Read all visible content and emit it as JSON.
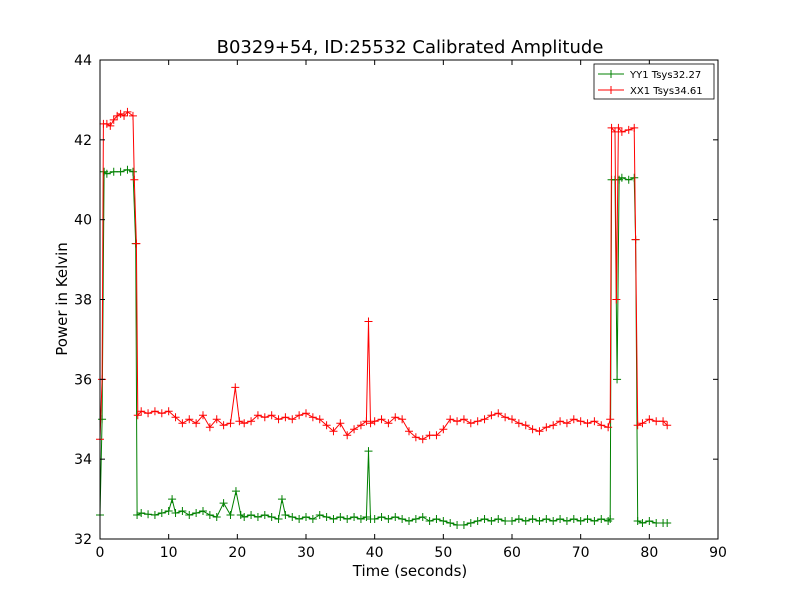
{
  "chart_data": {
    "type": "line",
    "title": "B0329+54, ID:25532 Calibrated Amplitude",
    "xlabel": "Time (seconds)",
    "ylabel": "Power in Kelvin",
    "xlim": [
      0,
      90
    ],
    "ylim": [
      32,
      44
    ],
    "xticks": [
      "0",
      "10",
      "20",
      "30",
      "40",
      "50",
      "60",
      "70",
      "80",
      "90"
    ],
    "yticks": [
      "32",
      "34",
      "36",
      "38",
      "40",
      "42",
      "44"
    ],
    "grid": false,
    "legend_position": "top-right",
    "series": [
      {
        "name": "YY1 Tsys32.27",
        "color": "#008000",
        "marker": "plus",
        "points": [
          [
            0,
            32.6
          ],
          [
            0.3,
            35
          ],
          [
            0.6,
            41.2
          ],
          [
            1,
            41.15
          ],
          [
            2,
            41.2
          ],
          [
            3,
            41.2
          ],
          [
            4,
            41.25
          ],
          [
            4.8,
            41.2
          ],
          [
            5.2,
            39.4
          ],
          [
            5.4,
            32.6
          ],
          [
            6,
            32.65
          ],
          [
            7,
            32.62
          ],
          [
            8,
            32.6
          ],
          [
            9,
            32.65
          ],
          [
            10,
            32.7
          ],
          [
            10.5,
            33.0
          ],
          [
            11,
            32.65
          ],
          [
            12,
            32.7
          ],
          [
            13,
            32.6
          ],
          [
            14,
            32.65
          ],
          [
            15,
            32.7
          ],
          [
            16,
            32.6
          ],
          [
            17,
            32.55
          ],
          [
            18,
            32.9
          ],
          [
            19,
            32.6
          ],
          [
            19.8,
            33.2
          ],
          [
            20.5,
            32.6
          ],
          [
            21,
            32.55
          ],
          [
            22,
            32.6
          ],
          [
            23,
            32.55
          ],
          [
            24,
            32.6
          ],
          [
            25,
            32.55
          ],
          [
            26,
            32.5
          ],
          [
            26.5,
            33.0
          ],
          [
            27,
            32.6
          ],
          [
            28,
            32.55
          ],
          [
            29,
            32.5
          ],
          [
            30,
            32.55
          ],
          [
            31,
            32.5
          ],
          [
            32,
            32.6
          ],
          [
            33,
            32.55
          ],
          [
            34,
            32.5
          ],
          [
            35,
            32.55
          ],
          [
            36,
            32.5
          ],
          [
            37,
            32.55
          ],
          [
            38,
            32.5
          ],
          [
            38.8,
            32.55
          ],
          [
            39.1,
            34.2
          ],
          [
            39.4,
            32.5
          ],
          [
            40,
            32.5
          ],
          [
            41,
            32.55
          ],
          [
            42,
            32.5
          ],
          [
            43,
            32.55
          ],
          [
            44,
            32.5
          ],
          [
            45,
            32.45
          ],
          [
            46,
            32.5
          ],
          [
            47,
            32.55
          ],
          [
            48,
            32.45
          ],
          [
            49,
            32.5
          ],
          [
            50,
            32.45
          ],
          [
            51,
            32.4
          ],
          [
            52,
            32.35
          ],
          [
            53,
            32.35
          ],
          [
            54,
            32.4
          ],
          [
            55,
            32.45
          ],
          [
            56,
            32.5
          ],
          [
            57,
            32.45
          ],
          [
            58,
            32.5
          ],
          [
            59,
            32.45
          ],
          [
            60,
            32.45
          ],
          [
            61,
            32.5
          ],
          [
            62,
            32.45
          ],
          [
            63,
            32.5
          ],
          [
            64,
            32.45
          ],
          [
            65,
            32.5
          ],
          [
            66,
            32.45
          ],
          [
            67,
            32.5
          ],
          [
            68,
            32.45
          ],
          [
            69,
            32.5
          ],
          [
            70,
            32.45
          ],
          [
            71,
            32.5
          ],
          [
            72,
            32.45
          ],
          [
            73,
            32.5
          ],
          [
            74,
            32.45
          ],
          [
            74.3,
            32.5
          ],
          [
            74.5,
            41.0
          ],
          [
            75,
            41.0
          ],
          [
            75.3,
            36.0
          ],
          [
            75.6,
            41.0
          ],
          [
            76,
            41.05
          ],
          [
            77,
            41.0
          ],
          [
            77.8,
            41.05
          ],
          [
            78,
            39.5
          ],
          [
            78.3,
            32.45
          ],
          [
            79,
            32.4
          ],
          [
            80,
            32.45
          ],
          [
            81,
            32.4
          ],
          [
            82,
            32.4
          ],
          [
            82.6,
            32.4
          ]
        ]
      },
      {
        "name": "XX1 Tsys34.61",
        "color": "#ff0000",
        "marker": "plus",
        "points": [
          [
            0,
            34.5
          ],
          [
            0.3,
            36
          ],
          [
            0.5,
            42.4
          ],
          [
            1,
            42.4
          ],
          [
            1.5,
            42.35
          ],
          [
            2,
            42.5
          ],
          [
            2.5,
            42.6
          ],
          [
            3,
            42.65
          ],
          [
            3.5,
            42.6
          ],
          [
            4,
            42.7
          ],
          [
            4.8,
            42.6
          ],
          [
            5,
            41.0
          ],
          [
            5.3,
            39.4
          ],
          [
            5.5,
            35.1
          ],
          [
            6,
            35.2
          ],
          [
            7,
            35.15
          ],
          [
            8,
            35.2
          ],
          [
            9,
            35.15
          ],
          [
            10,
            35.2
          ],
          [
            11,
            35.05
          ],
          [
            12,
            34.9
          ],
          [
            13,
            35.0
          ],
          [
            14,
            34.9
          ],
          [
            15,
            35.1
          ],
          [
            16,
            34.8
          ],
          [
            17,
            35.0
          ],
          [
            18,
            34.85
          ],
          [
            19,
            34.9
          ],
          [
            19.7,
            35.8
          ],
          [
            20.3,
            34.95
          ],
          [
            21,
            34.9
          ],
          [
            22,
            34.95
          ],
          [
            23,
            35.1
          ],
          [
            24,
            35.05
          ],
          [
            25,
            35.1
          ],
          [
            26,
            35.0
          ],
          [
            27,
            35.05
          ],
          [
            28,
            35.0
          ],
          [
            29,
            35.1
          ],
          [
            30,
            35.15
          ],
          [
            31,
            35.05
          ],
          [
            32,
            35.0
          ],
          [
            33,
            34.85
          ],
          [
            34,
            34.7
          ],
          [
            35,
            34.9
          ],
          [
            36,
            34.6
          ],
          [
            37,
            34.75
          ],
          [
            38,
            34.85
          ],
          [
            38.8,
            34.95
          ],
          [
            39.1,
            37.45
          ],
          [
            39.4,
            34.9
          ],
          [
            40,
            34.95
          ],
          [
            41,
            35.0
          ],
          [
            42,
            34.9
          ],
          [
            43,
            35.05
          ],
          [
            44,
            35.0
          ],
          [
            45,
            34.7
          ],
          [
            46,
            34.55
          ],
          [
            47,
            34.5
          ],
          [
            48,
            34.6
          ],
          [
            49,
            34.6
          ],
          [
            50,
            34.75
          ],
          [
            51,
            35.0
          ],
          [
            52,
            34.95
          ],
          [
            53,
            35.0
          ],
          [
            54,
            34.9
          ],
          [
            55,
            34.95
          ],
          [
            56,
            35.0
          ],
          [
            57,
            35.1
          ],
          [
            58,
            35.15
          ],
          [
            59,
            35.05
          ],
          [
            60,
            35.0
          ],
          [
            61,
            34.9
          ],
          [
            62,
            34.85
          ],
          [
            63,
            34.75
          ],
          [
            64,
            34.7
          ],
          [
            65,
            34.8
          ],
          [
            66,
            34.85
          ],
          [
            67,
            34.95
          ],
          [
            68,
            34.9
          ],
          [
            69,
            35.0
          ],
          [
            70,
            34.95
          ],
          [
            71,
            34.9
          ],
          [
            72,
            34.95
          ],
          [
            73,
            34.85
          ],
          [
            74,
            34.8
          ],
          [
            74.3,
            35.0
          ],
          [
            74.5,
            42.3
          ],
          [
            75,
            42.2
          ],
          [
            75.2,
            38.0
          ],
          [
            75.5,
            42.3
          ],
          [
            76,
            42.2
          ],
          [
            77,
            42.25
          ],
          [
            77.8,
            42.3
          ],
          [
            78,
            39.5
          ],
          [
            78.3,
            34.85
          ],
          [
            79,
            34.9
          ],
          [
            80,
            35.0
          ],
          [
            81,
            34.95
          ],
          [
            82,
            34.95
          ],
          [
            82.6,
            34.85
          ]
        ]
      }
    ]
  }
}
